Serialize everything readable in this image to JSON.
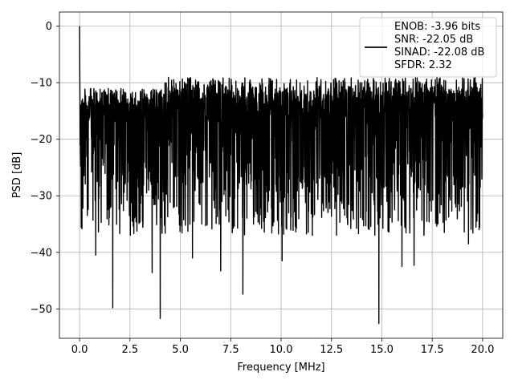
{
  "chart_data": {
    "type": "line",
    "xlabel": "Frequency [MHz]",
    "ylabel": "PSD [dB]",
    "xlim": [
      -1.0,
      21.0
    ],
    "ylim": [
      -55.2,
      2.5
    ],
    "xticks": [
      0.0,
      2.5,
      5.0,
      7.5,
      10.0,
      12.5,
      15.0,
      17.5,
      20.0
    ],
    "xtick_labels": [
      "0.0",
      "2.5",
      "5.0",
      "7.5",
      "10.0",
      "12.5",
      "15.0",
      "17.5",
      "20.0"
    ],
    "yticks": [
      0,
      -10,
      -20,
      -30,
      -40,
      -50
    ],
    "ytick_labels": [
      "0",
      "−10",
      "−20",
      "−30",
      "−40",
      "−50"
    ],
    "grid": true,
    "legend": {
      "placement": "top-right",
      "entries": [
        "ENOB: -3.96 bits",
        "SNR: -22.05 dB",
        "SINAD: -22.08 dB",
        "SFDR: 2.32"
      ]
    },
    "series": [
      {
        "color": "#000000",
        "x_range": [
          0.0,
          20.0
        ],
        "peak": {
          "x": 0.0,
          "y": 0.0
        },
        "typical_band": [
          -28,
          -11
        ],
        "deep_nulls": [
          {
            "x": 1.65,
            "y": -49.8
          },
          {
            "x": 4.0,
            "y": -51.7
          },
          {
            "x": 8.1,
            "y": -47.4
          },
          {
            "x": 14.85,
            "y": -52.6
          },
          {
            "x": 3.6,
            "y": -43.6
          },
          {
            "x": 10.05,
            "y": -41.5
          },
          {
            "x": 0.8,
            "y": -40.5
          },
          {
            "x": 5.6,
            "y": -41.0
          },
          {
            "x": 7.0,
            "y": -43.3
          },
          {
            "x": 16.0,
            "y": -42.5
          },
          {
            "x": 16.6,
            "y": -42.3
          },
          {
            "x": 19.3,
            "y": -38.5
          }
        ]
      }
    ]
  }
}
